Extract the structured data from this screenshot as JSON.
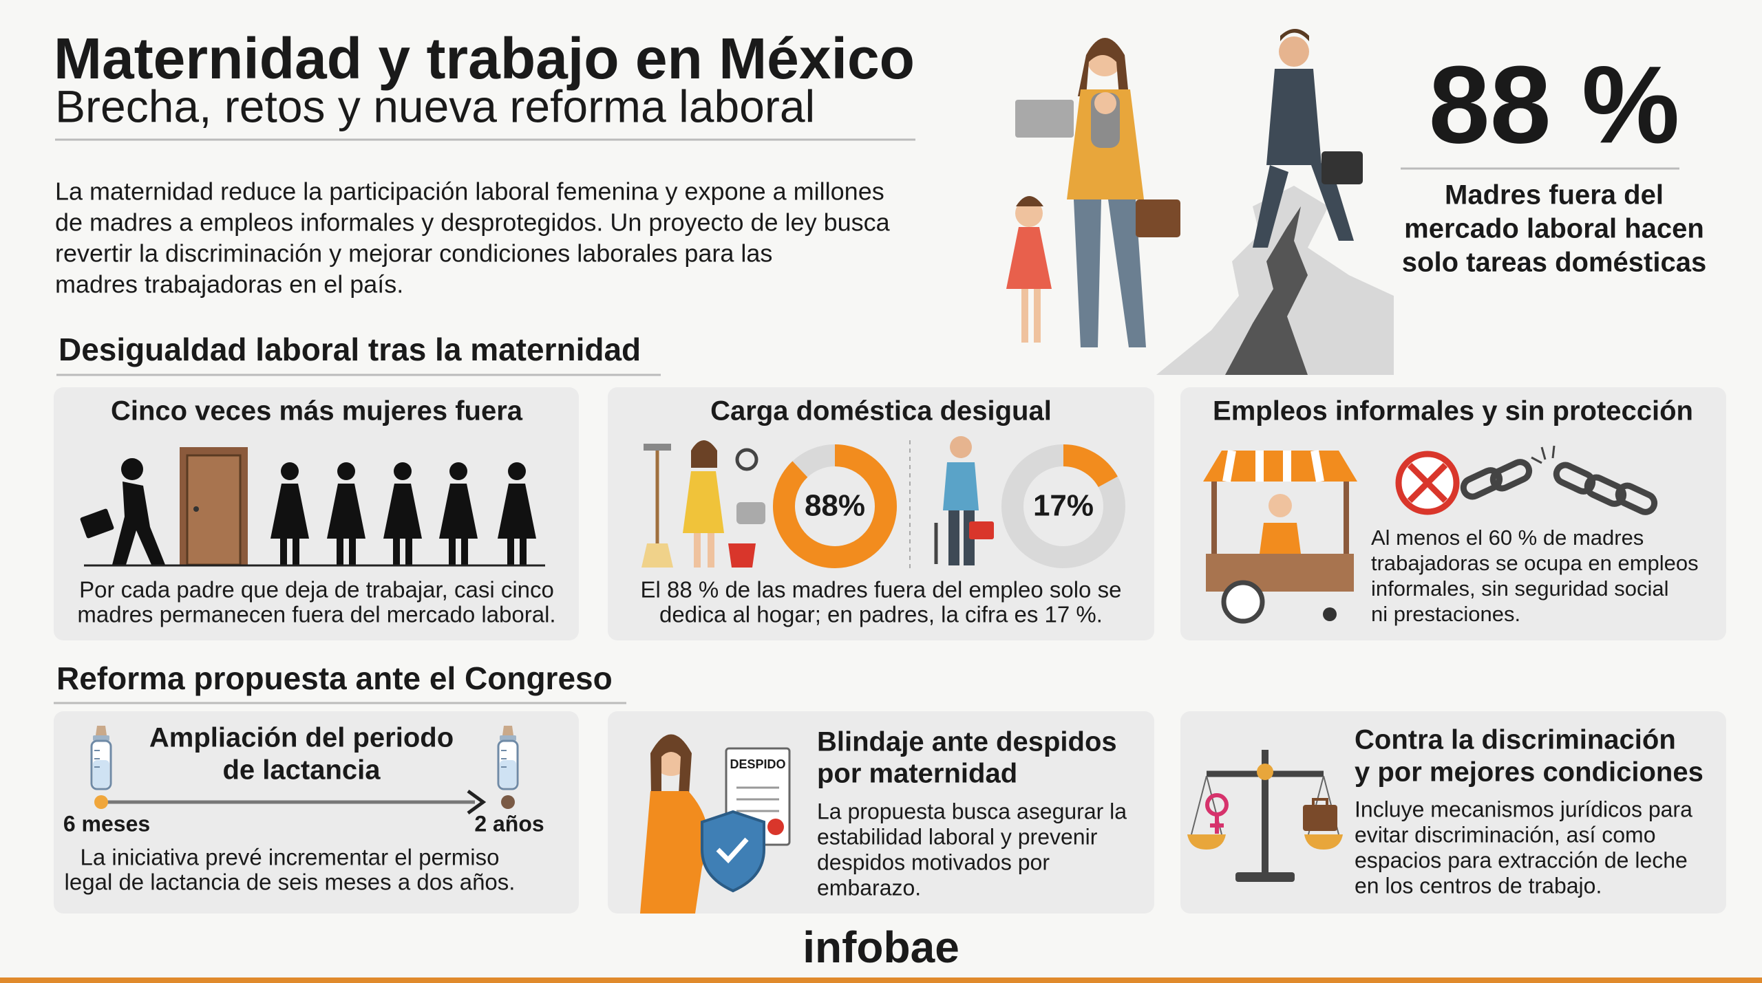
{
  "header": {
    "title": "Maternidad y trabajo en México",
    "subtitle": "Brecha, retos y nueva reforma laboral",
    "intro": [
      "La maternidad reduce la participación laboral femenina y expone a millones",
      "de madres a empleos informales y desprotegidos. Un proyecto de ley busca",
      "revertir la discriminación y mejorar condiciones laborales para las",
      "madres trabajadoras en el país."
    ]
  },
  "stat": {
    "value": "88 %",
    "caption": [
      "Madres fuera del",
      "mercado laboral hacen",
      "solo tareas domésticas"
    ]
  },
  "section1": {
    "heading": "Desigualdad laboral tras la maternidad",
    "cards": [
      {
        "title": "Cinco veces más mujeres fuera",
        "text": [
          "Por cada padre que deja de trabajar, casi cinco",
          "madres permanecen fuera del mercado laboral."
        ]
      },
      {
        "title": "Carga doméstica desigual",
        "donuts": {
          "values": [
            88,
            17
          ],
          "value_labels": [
            "88%",
            "17%"
          ],
          "color": "#f28c1e",
          "track": "#d9d9d9"
        },
        "text": [
          "El 88 % de las madres fuera del empleo solo se",
          "dedica al hogar; en padres, la cifra es 17 %."
        ]
      },
      {
        "title": "Empleos informales y sin protección",
        "text": [
          "Al menos el 60 % de madres",
          "trabajadoras se ocupa en empleos",
          "informales, sin seguridad social",
          "ni prestaciones."
        ]
      }
    ]
  },
  "section2": {
    "heading": "Reforma propuesta ante el Congreso",
    "cards": [
      {
        "title": [
          "Ampliación del periodo",
          "de lactancia"
        ],
        "labels": [
          "6 meses",
          "2 años"
        ],
        "text": [
          "La iniciativa prevé incrementar el permiso",
          "legal de lactancia de seis meses a dos años."
        ]
      },
      {
        "title": [
          "Blindaje ante despidos",
          "por maternidad"
        ],
        "document_label": "DESPIDO",
        "text": [
          "La propuesta busca asegurar la",
          "estabilidad laboral y prevenir",
          "despidos motivados por",
          "embarazo."
        ]
      },
      {
        "title": [
          "Contra la discriminación",
          "y por mejores condiciones"
        ],
        "text": [
          "Incluye mecanismos jurídicos para",
          "evitar discriminación, así como",
          "espacios para extracción de leche",
          "en los centros de trabajo."
        ]
      }
    ]
  },
  "footer": {
    "brand": "infobae"
  }
}
